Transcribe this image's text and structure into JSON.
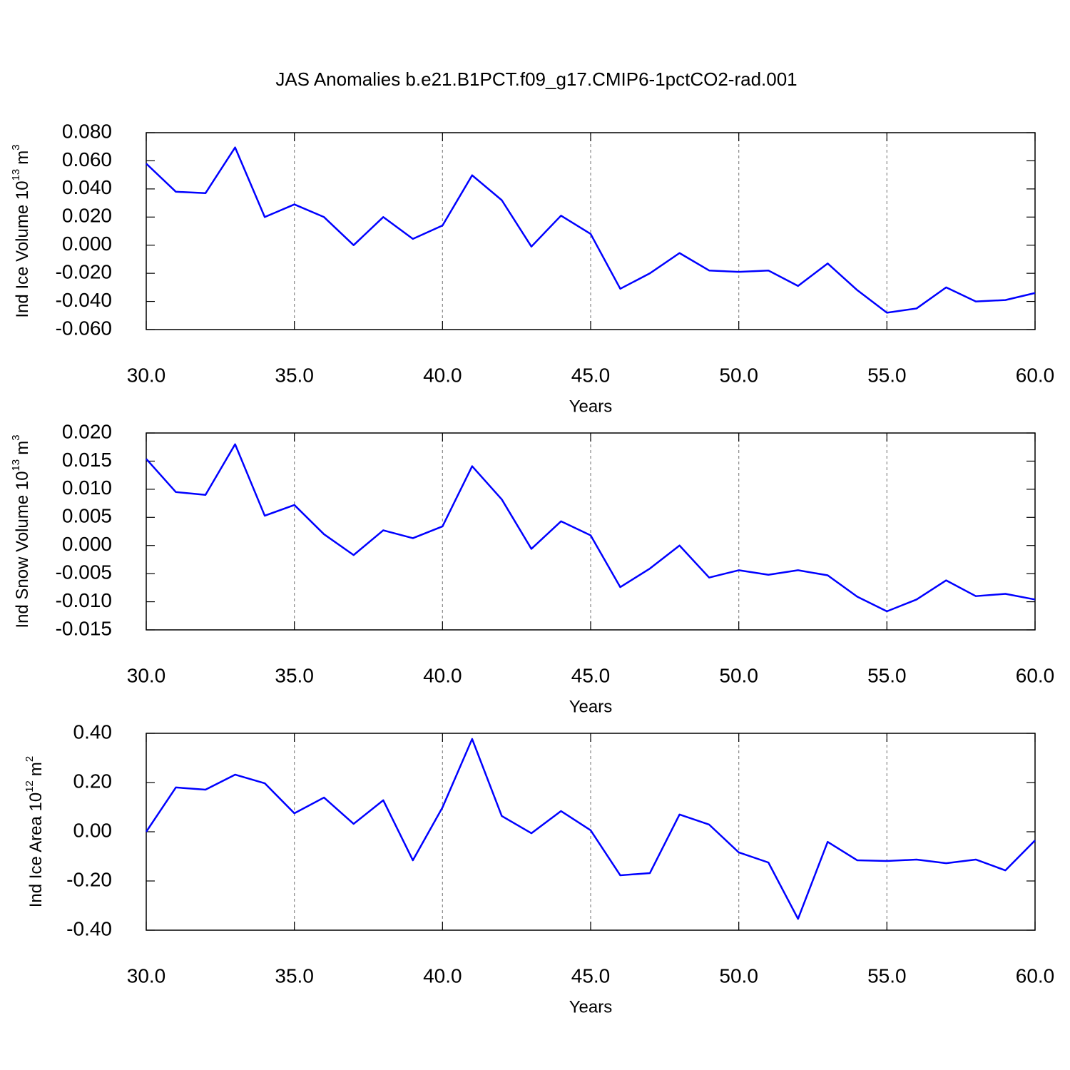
{
  "title": "JAS Anomalies b.e21.B1PCT.f09_g17.CMIP6-1pctCO2-rad.001",
  "chart_data": [
    {
      "type": "line",
      "color": "#0000ff",
      "grid": true,
      "ylabel": {
        "text": "Ind Ice Volume 10",
        "power": "13",
        "unit": "m",
        "unit_power": "3"
      },
      "xlabel": "Years",
      "x": [
        30,
        31,
        32,
        33,
        34,
        35,
        36,
        37,
        38,
        39,
        40,
        41,
        42,
        43,
        44,
        45,
        46,
        47,
        48,
        49,
        50,
        51,
        52,
        53,
        54,
        55,
        56,
        57,
        58,
        59,
        60
      ],
      "values": [
        0.058,
        0.038,
        0.037,
        0.0695,
        0.02,
        0.029,
        0.02,
        0.0,
        0.02,
        0.0045,
        0.014,
        0.0497,
        0.032,
        -0.001,
        0.021,
        0.008,
        -0.031,
        -0.02,
        -0.0056,
        -0.018,
        -0.019,
        -0.018,
        -0.029,
        -0.013,
        -0.032,
        -0.048,
        -0.045,
        -0.03,
        -0.04,
        -0.039,
        -0.034
      ],
      "xlim": [
        30,
        60
      ],
      "xticks": [
        {
          "value": 30,
          "label": "30.0"
        },
        {
          "value": 35,
          "label": "35.0"
        },
        {
          "value": 40,
          "label": "40.0"
        },
        {
          "value": 45,
          "label": "45.0"
        },
        {
          "value": 50,
          "label": "50.0"
        },
        {
          "value": 55,
          "label": "55.0"
        },
        {
          "value": 60,
          "label": "60.0"
        }
      ],
      "ylim": [
        -0.06,
        0.08
      ],
      "yticks": [
        {
          "value": 0.08,
          "label": "0.080"
        },
        {
          "value": 0.06,
          "label": "0.060"
        },
        {
          "value": 0.04,
          "label": "0.040"
        },
        {
          "value": 0.02,
          "label": "0.020"
        },
        {
          "value": 0,
          "label": "0.000"
        },
        {
          "value": -0.02,
          "label": "-0.020"
        },
        {
          "value": -0.04,
          "label": "-0.040"
        },
        {
          "value": -0.06,
          "label": "-0.060"
        }
      ]
    },
    {
      "type": "line",
      "color": "#0000ff",
      "grid": true,
      "ylabel": {
        "text": "Ind Snow Volume 10",
        "power": "13",
        "unit": "m",
        "unit_power": "3"
      },
      "xlabel": "Years",
      "x": [
        30,
        31,
        32,
        33,
        34,
        35,
        36,
        37,
        38,
        39,
        40,
        41,
        42,
        43,
        44,
        45,
        46,
        47,
        48,
        49,
        50,
        51,
        52,
        53,
        54,
        55,
        56,
        57,
        58,
        59,
        60
      ],
      "values": [
        0.0154,
        0.0095,
        0.009,
        0.018,
        0.0053,
        0.0072,
        0.002,
        -0.0017,
        0.0027,
        0.0013,
        0.0034,
        0.0141,
        0.0082,
        -0.0006,
        0.0043,
        0.0018,
        -0.0074,
        -0.0041,
        0.0,
        -0.0057,
        -0.0044,
        -0.0052,
        -0.0044,
        -0.0053,
        -0.0091,
        -0.0117,
        -0.0096,
        -0.0062,
        -0.009,
        -0.0086,
        -0.0096
      ],
      "xlim": [
        30,
        60
      ],
      "xticks": [
        {
          "value": 30,
          "label": "30.0"
        },
        {
          "value": 35,
          "label": "35.0"
        },
        {
          "value": 40,
          "label": "40.0"
        },
        {
          "value": 45,
          "label": "45.0"
        },
        {
          "value": 50,
          "label": "50.0"
        },
        {
          "value": 55,
          "label": "55.0"
        },
        {
          "value": 60,
          "label": "60.0"
        }
      ],
      "ylim": [
        -0.015,
        0.02
      ],
      "yticks": [
        {
          "value": 0.02,
          "label": "0.020"
        },
        {
          "value": 0.015,
          "label": "0.015"
        },
        {
          "value": 0.01,
          "label": "0.010"
        },
        {
          "value": 0.005,
          "label": "0.005"
        },
        {
          "value": 0,
          "label": "0.000"
        },
        {
          "value": -0.005,
          "label": "-0.005"
        },
        {
          "value": -0.01,
          "label": "-0.010"
        },
        {
          "value": -0.015,
          "label": "-0.015"
        }
      ]
    },
    {
      "type": "line",
      "color": "#0000ff",
      "grid": true,
      "ylabel": {
        "text": "Ind Ice Area 10",
        "power": "12",
        "unit": "m",
        "unit_power": "2"
      },
      "xlabel": "Years",
      "x": [
        30,
        31,
        32,
        33,
        34,
        35,
        36,
        37,
        38,
        39,
        40,
        41,
        42,
        43,
        44,
        45,
        46,
        47,
        48,
        49,
        50,
        51,
        52,
        53,
        54,
        55,
        56,
        57,
        58,
        59,
        60
      ],
      "values": [
        0.0,
        0.18,
        0.171,
        0.232,
        0.197,
        0.075,
        0.139,
        0.032,
        0.128,
        -0.116,
        0.099,
        0.377,
        0.064,
        -0.006,
        0.084,
        0.006,
        -0.177,
        -0.168,
        0.07,
        0.029,
        -0.084,
        -0.125,
        -0.354,
        -0.041,
        -0.116,
        -0.119,
        -0.113,
        -0.128,
        -0.113,
        -0.157,
        -0.035
      ],
      "xlim": [
        30,
        60
      ],
      "xticks": [
        {
          "value": 30,
          "label": "30.0"
        },
        {
          "value": 35,
          "label": "35.0"
        },
        {
          "value": 40,
          "label": "40.0"
        },
        {
          "value": 45,
          "label": "45.0"
        },
        {
          "value": 50,
          "label": "50.0"
        },
        {
          "value": 55,
          "label": "55.0"
        },
        {
          "value": 60,
          "label": "60.0"
        }
      ],
      "ylim": [
        -0.4,
        0.4
      ],
      "yticks": [
        {
          "value": 0.4,
          "label": "0.40"
        },
        {
          "value": 0.2,
          "label": "0.20"
        },
        {
          "value": 0,
          "label": "0.00"
        },
        {
          "value": -0.2,
          "label": "-0.20"
        },
        {
          "value": -0.4,
          "label": "-0.40"
        }
      ]
    }
  ]
}
